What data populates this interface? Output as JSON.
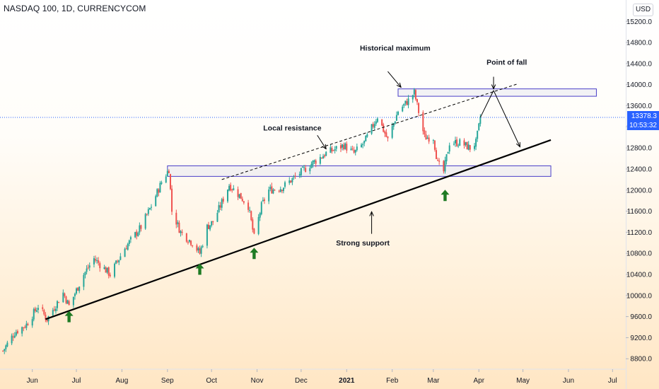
{
  "header": {
    "symbol_title": "NASDAQ 100, 1D, CURRENCYCOM",
    "currency": "USD"
  },
  "price_tag": {
    "price": "13378.3",
    "countdown": "10:53:32"
  },
  "colors": {
    "up": "#26a69a",
    "down": "#ef5350",
    "zone_border": "#4a3fc8",
    "zone_fill": "rgba(232,232,240,0.55)",
    "support_line": "#000000",
    "arrow_up": "#1e7a23",
    "price_line": "#2962ff"
  },
  "chart_data": {
    "type": "candlestick",
    "title": "NASDAQ 100, 1D, CURRENCYCOM",
    "ylim": [
      8500,
      15500
    ],
    "y_ticks": [
      8800,
      9200,
      9600,
      10000,
      10400,
      10800,
      11200,
      11600,
      12000,
      12400,
      12800,
      13200,
      13600,
      14000,
      14400,
      14800,
      15200
    ],
    "y_tick_labels": [
      "8800.0",
      "9200.0",
      "9600.0",
      "10000.0",
      "10400.0",
      "10800.0",
      "11200.0",
      "11600.0",
      "12000.0",
      "12400.0",
      "12800.0",
      "13200.0",
      "13600.0",
      "14000.0",
      "14400.0",
      "14800.0",
      "15200.0"
    ],
    "x_range": [
      "2020-05-10",
      "2021-07-10"
    ],
    "x_ticks": [
      {
        "date": "2020-06-01",
        "label": "Jun"
      },
      {
        "date": "2020-07-01",
        "label": "Jul"
      },
      {
        "date": "2020-08-01",
        "label": "Aug"
      },
      {
        "date": "2020-09-01",
        "label": "Sep"
      },
      {
        "date": "2020-10-01",
        "label": "Oct"
      },
      {
        "date": "2020-11-01",
        "label": "Nov"
      },
      {
        "date": "2020-12-01",
        "label": "Dec"
      },
      {
        "date": "2021-01-01",
        "label": "2021"
      },
      {
        "date": "2021-02-01",
        "label": "Feb"
      },
      {
        "date": "2021-03-01",
        "label": "Mar"
      },
      {
        "date": "2021-04-01",
        "label": "Apr"
      },
      {
        "date": "2021-05-01",
        "label": "May"
      },
      {
        "date": "2021-06-01",
        "label": "Jun"
      },
      {
        "date": "2021-07-01",
        "label": "Jul"
      }
    ],
    "last_price": 13378.3,
    "close_path": [
      [
        "2020-05-12",
        8950
      ],
      [
        "2020-05-20",
        9300
      ],
      [
        "2020-05-28",
        9450
      ],
      [
        "2020-06-05",
        9800
      ],
      [
        "2020-06-11",
        9550
      ],
      [
        "2020-06-22",
        10050
      ],
      [
        "2020-06-26",
        9800
      ],
      [
        "2020-07-06",
        10400
      ],
      [
        "2020-07-13",
        10700
      ],
      [
        "2020-07-24",
        10400
      ],
      [
        "2020-08-03",
        10900
      ],
      [
        "2020-08-14",
        11300
      ],
      [
        "2020-08-21",
        11700
      ],
      [
        "2020-08-28",
        12150
      ],
      [
        "2020-09-02",
        12400
      ],
      [
        "2020-09-04",
        11600
      ],
      [
        "2020-09-10",
        11200
      ],
      [
        "2020-09-18",
        11000
      ],
      [
        "2020-09-23",
        10800
      ],
      [
        "2020-09-28",
        11300
      ],
      [
        "2020-10-02",
        11400
      ],
      [
        "2020-10-07",
        11700
      ],
      [
        "2020-10-13",
        12100
      ],
      [
        "2020-10-20",
        11900
      ],
      [
        "2020-10-26",
        11700
      ],
      [
        "2020-10-30",
        11100
      ],
      [
        "2020-11-04",
        11700
      ],
      [
        "2020-11-09",
        12000
      ],
      [
        "2020-11-18",
        12050
      ],
      [
        "2020-11-27",
        12250
      ],
      [
        "2020-12-08",
        12500
      ],
      [
        "2020-12-18",
        12700
      ],
      [
        "2020-12-30",
        12850
      ],
      [
        "2021-01-06",
        12700
      ],
      [
        "2021-01-13",
        12900
      ],
      [
        "2021-01-22",
        13400
      ],
      [
        "2021-01-29",
        12950
      ],
      [
        "2021-02-05",
        13500
      ],
      [
        "2021-02-12",
        13700
      ],
      [
        "2021-02-16",
        13850
      ],
      [
        "2021-02-23",
        13000
      ],
      [
        "2021-03-01",
        13000
      ],
      [
        "2021-03-04",
        12500
      ],
      [
        "2021-03-08",
        12350
      ],
      [
        "2021-03-12",
        12900
      ],
      [
        "2021-03-19",
        12900
      ],
      [
        "2021-03-26",
        12800
      ],
      [
        "2021-03-30",
        12900
      ],
      [
        "2021-04-01",
        13200
      ],
      [
        "2021-04-02",
        13378
      ]
    ],
    "zones": [
      {
        "name": "Historical maximum zone",
        "x_start": "2021-02-05",
        "x_end": "2021-06-20",
        "y_low": 13780,
        "y_high": 13920
      },
      {
        "name": "Support zone",
        "x_start": "2020-09-01",
        "x_end": "2021-05-20",
        "y_low": 12260,
        "y_high": 12460
      }
    ],
    "lines": [
      {
        "name": "strong support trendline",
        "style": "solid",
        "from": [
          "2020-06-10",
          9550
        ],
        "to": [
          "2021-05-20",
          12950
        ]
      },
      {
        "name": "local resistance trendline",
        "style": "dashed",
        "from": [
          "2020-10-08",
          12200
        ],
        "to": [
          "2021-04-28",
          14020
        ]
      },
      {
        "name": "projection rise",
        "style": "solid",
        "from": [
          "2021-04-02",
          13378
        ],
        "to": [
          "2021-04-11",
          13890
        ]
      },
      {
        "name": "projection fall",
        "style": "solid",
        "from": [
          "2021-04-11",
          13890
        ],
        "to": [
          "2021-04-29",
          12820
        ]
      }
    ],
    "annotations": [
      {
        "text": "Historical maximum",
        "date": "2021-02-03",
        "price": 14650,
        "arrow_from": [
          "2021-01-29",
          14250
        ],
        "arrow_to": [
          "2021-02-07",
          13950
        ]
      },
      {
        "text": "Point of fall",
        "date": "2021-04-20",
        "price": 14380,
        "arrow_from": [
          "2021-04-11",
          14150
        ],
        "arrow_to": [
          "2021-04-11",
          13920
        ]
      },
      {
        "text": "Local resistance",
        "date": "2020-11-25",
        "price": 13130,
        "arrow_from": [
          "2020-12-12",
          13040
        ],
        "arrow_to": [
          "2020-12-18",
          12780
        ]
      },
      {
        "text": "Strong support",
        "date": "2021-01-12",
        "price": 10950,
        "arrow_from": [
          "2021-01-18",
          11170
        ],
        "arrow_to": [
          "2021-01-18",
          11590
        ]
      }
    ],
    "up_arrows": [
      {
        "name": "up-arrow-june",
        "date": "2020-06-26",
        "price": 9600
      },
      {
        "name": "up-arrow-september",
        "date": "2020-09-23",
        "price": 10500
      },
      {
        "name": "up-arrow-november",
        "date": "2020-10-30",
        "price": 10800
      },
      {
        "name": "up-arrow-march",
        "date": "2021-03-09",
        "price": 11900
      }
    ]
  }
}
